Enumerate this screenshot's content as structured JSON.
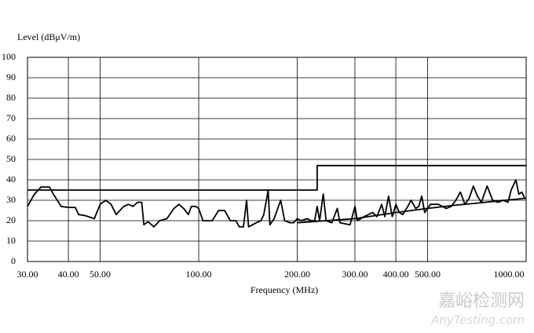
{
  "chart_data": {
    "type": "line",
    "ylabel": "Level (dBμV/m)",
    "xlabel": "Frequency (MHz)",
    "xscale": "log",
    "grid": true,
    "xlim": [
      30,
      1000
    ],
    "ylim": [
      0,
      100
    ],
    "xticks": [
      {
        "value": 30,
        "label": "30.00"
      },
      {
        "value": 40,
        "label": "40.00"
      },
      {
        "value": 50,
        "label": "50.00"
      },
      {
        "value": 100,
        "label": "100.00"
      },
      {
        "value": 200,
        "label": "200.00"
      },
      {
        "value": 300,
        "label": "300.00"
      },
      {
        "value": 400,
        "label": "400.00"
      },
      {
        "value": 500,
        "label": "500.00"
      },
      {
        "value": 1000,
        "label": "1000.00"
      }
    ],
    "yticks": [
      0,
      10,
      20,
      30,
      40,
      50,
      60,
      70,
      80,
      90,
      100
    ],
    "series": [
      {
        "color": "#000000",
        "x": [
          30,
          230,
          230,
          1000
        ],
        "values": [
          35,
          35,
          47,
          47
        ]
      },
      {
        "color": "#000000",
        "x": [
          30,
          31.5,
          33,
          35,
          36,
          38,
          40,
          42,
          43,
          45,
          48,
          50,
          52,
          54,
          56,
          59,
          61,
          63,
          65,
          67,
          68,
          70,
          73,
          76,
          80,
          84,
          87,
          90,
          93,
          95,
          98,
          100,
          103,
          110,
          115,
          120,
          125,
          130,
          133,
          137,
          140,
          142,
          150,
          155,
          158,
          163,
          165,
          170,
          178,
          183,
          190,
          195,
          200,
          205,
          215,
          220,
          226,
          230,
          234,
          240,
          245,
          255,
          265,
          270,
          290,
          300,
          305,
          320,
          340,
          350,
          362,
          370,
          380,
          390,
          400,
          410,
          420,
          435,
          445,
          460,
          470,
          480,
          490,
          510,
          540,
          570,
          590,
          610,
          630,
          650,
          670,
          690,
          710,
          730,
          760,
          790,
          820,
          850,
          880,
          900,
          930,
          950,
          970,
          990,
          1000
        ],
        "values": [
          27,
          33,
          36.5,
          36.5,
          33,
          27,
          26.5,
          26.5,
          23,
          22.5,
          21,
          28,
          30,
          28,
          23,
          27,
          28,
          27,
          29,
          29,
          18,
          19.5,
          17,
          20,
          21,
          26,
          28,
          26,
          23,
          27,
          27,
          26,
          20,
          20,
          25,
          25,
          20,
          20,
          17,
          17,
          30,
          17,
          19,
          20,
          23,
          35,
          18,
          21,
          30,
          20,
          19,
          19,
          21,
          20,
          21,
          20,
          20,
          27,
          20,
          33,
          20,
          19,
          26,
          19,
          18,
          27,
          20,
          22,
          24,
          22,
          28,
          22,
          32,
          22,
          28,
          24,
          23,
          27,
          30,
          26,
          27,
          32,
          24,
          28,
          28,
          26,
          27,
          30,
          34,
          28,
          31,
          37,
          32,
          29,
          37,
          30,
          29,
          30,
          29,
          35,
          40,
          33,
          34,
          31,
          31
        ]
      },
      {
        "color": "#000000",
        "x": [
          200,
          300,
          400,
          500,
          600,
          700,
          800,
          1000
        ],
        "values": [
          19,
          21,
          24,
          26,
          27.5,
          28.5,
          29.5,
          31
        ]
      }
    ]
  },
  "watermark": {
    "name": "嘉峪检测网",
    "site": "AnyTesting.com"
  }
}
